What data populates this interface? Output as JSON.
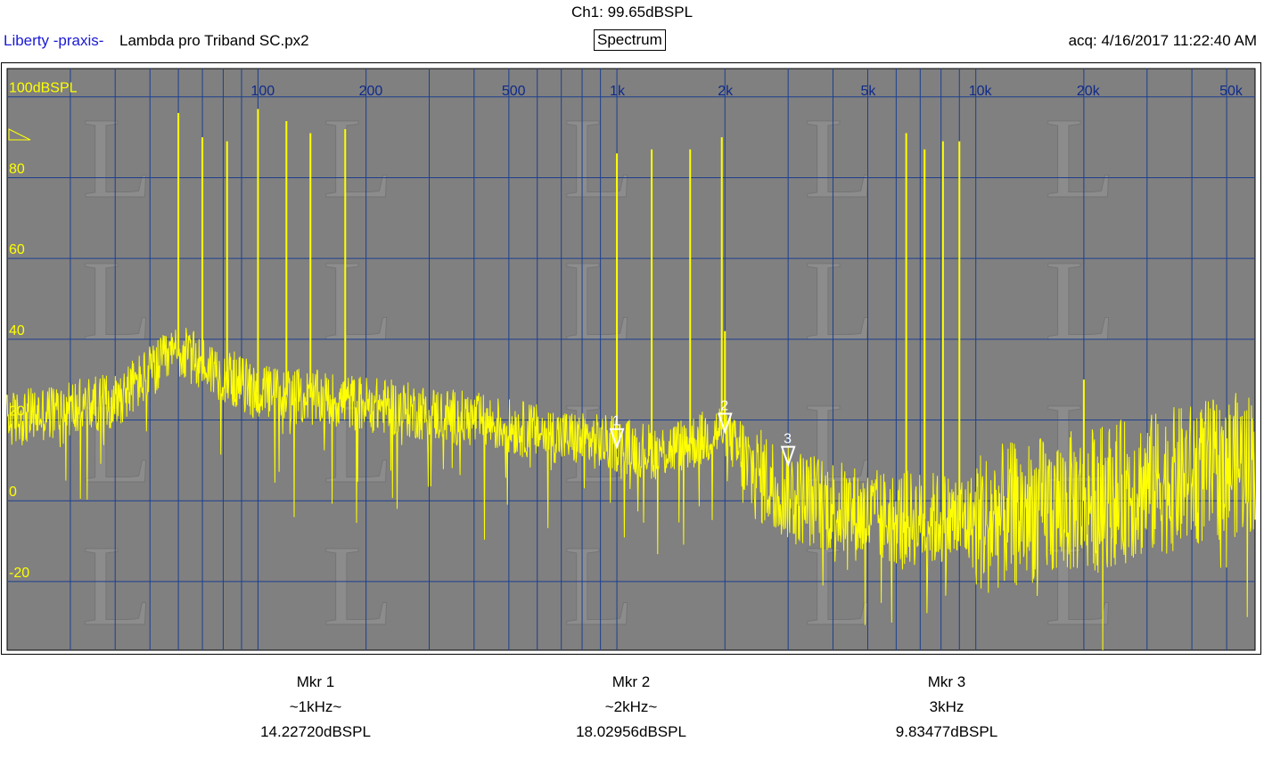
{
  "header": {
    "channel_reading": "Ch1: 99.65dBSPL",
    "app_name": "Liberty -praxis-",
    "file_name": "Lambda pro Triband SC.px2",
    "view_label": "Spectrum",
    "acquired": "acq: 4/16/2017 11:22:40 AM"
  },
  "colors": {
    "plot_bg": "#808080",
    "grid": "#1c3f8f",
    "trace": "#ffff00",
    "x_tick_text": "#0f2a8a",
    "y_tick_text": "#ffff00",
    "app_name": "#1a1ad6"
  },
  "chart_data": {
    "type": "line",
    "x_scale": "log",
    "xlim": [
      20,
      60000
    ],
    "ylim": [
      -37,
      107
    ],
    "grid": true,
    "x_tick_labels": [
      {
        "value": 100,
        "label": "100"
      },
      {
        "value": 200,
        "label": "200"
      },
      {
        "value": 500,
        "label": "500"
      },
      {
        "value": 1000,
        "label": "1k"
      },
      {
        "value": 2000,
        "label": "2k"
      },
      {
        "value": 5000,
        "label": "5k"
      },
      {
        "value": 10000,
        "label": "10k"
      },
      {
        "value": 20000,
        "label": "20k"
      },
      {
        "value": 50000,
        "label": "50k"
      }
    ],
    "y_tick_labels": [
      {
        "value": 100,
        "label": "100dBSPL"
      },
      {
        "value": 80,
        "label": "80"
      },
      {
        "value": 60,
        "label": "60"
      },
      {
        "value": 40,
        "label": "40"
      },
      {
        "value": 20,
        "label": "20"
      },
      {
        "value": 0,
        "label": "0"
      },
      {
        "value": -20,
        "label": "-20"
      }
    ],
    "peaks": [
      {
        "freq": 60,
        "db": 96
      },
      {
        "freq": 70,
        "db": 90
      },
      {
        "freq": 82,
        "db": 89
      },
      {
        "freq": 100,
        "db": 97
      },
      {
        "freq": 120,
        "db": 94
      },
      {
        "freq": 140,
        "db": 91
      },
      {
        "freq": 175,
        "db": 92
      },
      {
        "freq": 1000,
        "db": 86
      },
      {
        "freq": 1250,
        "db": 87
      },
      {
        "freq": 1600,
        "db": 87
      },
      {
        "freq": 1960,
        "db": 90
      },
      {
        "freq": 2000,
        "db": 42
      },
      {
        "freq": 6400,
        "db": 91
      },
      {
        "freq": 7200,
        "db": 87
      },
      {
        "freq": 8100,
        "db": 89
      },
      {
        "freq": 9000,
        "db": 89
      },
      {
        "freq": 20000,
        "db": 30
      }
    ],
    "floor": [
      {
        "freq": 20,
        "db": 20
      },
      {
        "freq": 40,
        "db": 25
      },
      {
        "freq": 60,
        "db": 37
      },
      {
        "freq": 100,
        "db": 27
      },
      {
        "freq": 200,
        "db": 24
      },
      {
        "freq": 400,
        "db": 20
      },
      {
        "freq": 800,
        "db": 15
      },
      {
        "freq": 1000,
        "db": 14
      },
      {
        "freq": 1300,
        "db": 12
      },
      {
        "freq": 1700,
        "db": 15
      },
      {
        "freq": 2000,
        "db": 18
      },
      {
        "freq": 2300,
        "db": 8
      },
      {
        "freq": 3000,
        "db": 2
      },
      {
        "freq": 5000,
        "db": -4
      },
      {
        "freq": 10000,
        "db": -5
      },
      {
        "freq": 20000,
        "db": 0
      },
      {
        "freq": 60000,
        "db": 10
      }
    ],
    "markers": [
      {
        "id": "1",
        "freq": 1000,
        "db": 14.2272
      },
      {
        "id": "2",
        "freq": 2000,
        "db": 18.02956
      },
      {
        "id": "3",
        "freq": 3000,
        "db": 9.83477
      }
    ]
  },
  "marker_readouts": [
    {
      "title": "Mkr 1",
      "freq": "~1kHz~",
      "level": "14.22720dBSPL"
    },
    {
      "title": "Mkr 2",
      "freq": "~2kHz~",
      "level": "18.02956dBSPL"
    },
    {
      "title": "Mkr 3",
      "freq": "3kHz",
      "level": "9.83477dBSPL"
    }
  ]
}
